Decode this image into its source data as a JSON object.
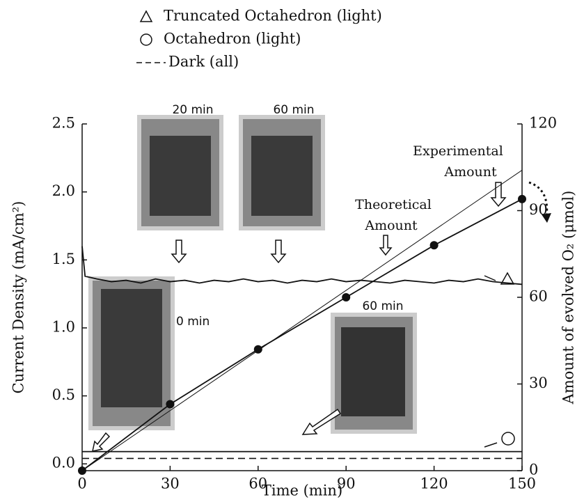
{
  "chart_data": {
    "type": "line",
    "x_label": "Time (min)",
    "y_label": "Current Density (mA/cm²)",
    "y2_label": "Amount of evolved O₂ (μmol)",
    "xlim": [
      0,
      150
    ],
    "xticks": [
      0,
      30,
      60,
      90,
      120,
      150
    ],
    "ylim": [
      -0.05,
      2.5
    ],
    "yticks": [
      {
        "value": 0,
        "label": "0.0"
      },
      0.5,
      {
        "value": 1,
        "label": "1.0"
      },
      1.5,
      {
        "value": 2,
        "label": "2.0"
      },
      2.5
    ],
    "y2lim": [
      0,
      120
    ],
    "y2ticks": [
      0,
      30,
      60,
      90,
      120
    ],
    "series": [
      {
        "name": "Truncated Octahedron (light)",
        "color": "#111111",
        "marker": "triangle",
        "x": [
          0,
          1,
          5,
          10,
          15,
          20,
          25,
          30,
          35,
          40,
          45,
          50,
          55,
          60,
          65,
          70,
          75,
          80,
          85,
          90,
          95,
          100,
          105,
          110,
          115,
          120,
          125,
          130,
          135,
          140,
          145,
          150
        ],
        "values": [
          1.6,
          1.38,
          1.36,
          1.34,
          1.35,
          1.33,
          1.36,
          1.34,
          1.35,
          1.33,
          1.35,
          1.34,
          1.36,
          1.34,
          1.35,
          1.33,
          1.35,
          1.34,
          1.36,
          1.34,
          1.35,
          1.34,
          1.33,
          1.35,
          1.34,
          1.33,
          1.35,
          1.34,
          1.36,
          1.34,
          1.33,
          1.32
        ]
      },
      {
        "name": "Octahedron (light)",
        "color": "#111111",
        "marker": "circle",
        "x": [
          0,
          150
        ],
        "values": [
          0.09,
          0.09
        ]
      },
      {
        "name": "Dark (all)",
        "color": "#111111",
        "dash": true,
        "x": [
          0,
          150
        ],
        "values": [
          0.04,
          0.04
        ]
      }
    ],
    "o2_series": [
      {
        "axis": "y2",
        "style": "points-line",
        "x": [
          0,
          30,
          60,
          90,
          120,
          150
        ],
        "values": [
          0,
          23,
          42,
          60,
          78,
          94
        ]
      },
      {
        "axis": "y2",
        "style": "thin-line",
        "x": [
          0,
          150
        ],
        "values": [
          0,
          104
        ]
      }
    ],
    "annotations": [
      "Experimental",
      "Amount",
      "Theoretical",
      "Amount",
      "20 min",
      "60 min",
      "0 min",
      "60 min"
    ]
  }
}
